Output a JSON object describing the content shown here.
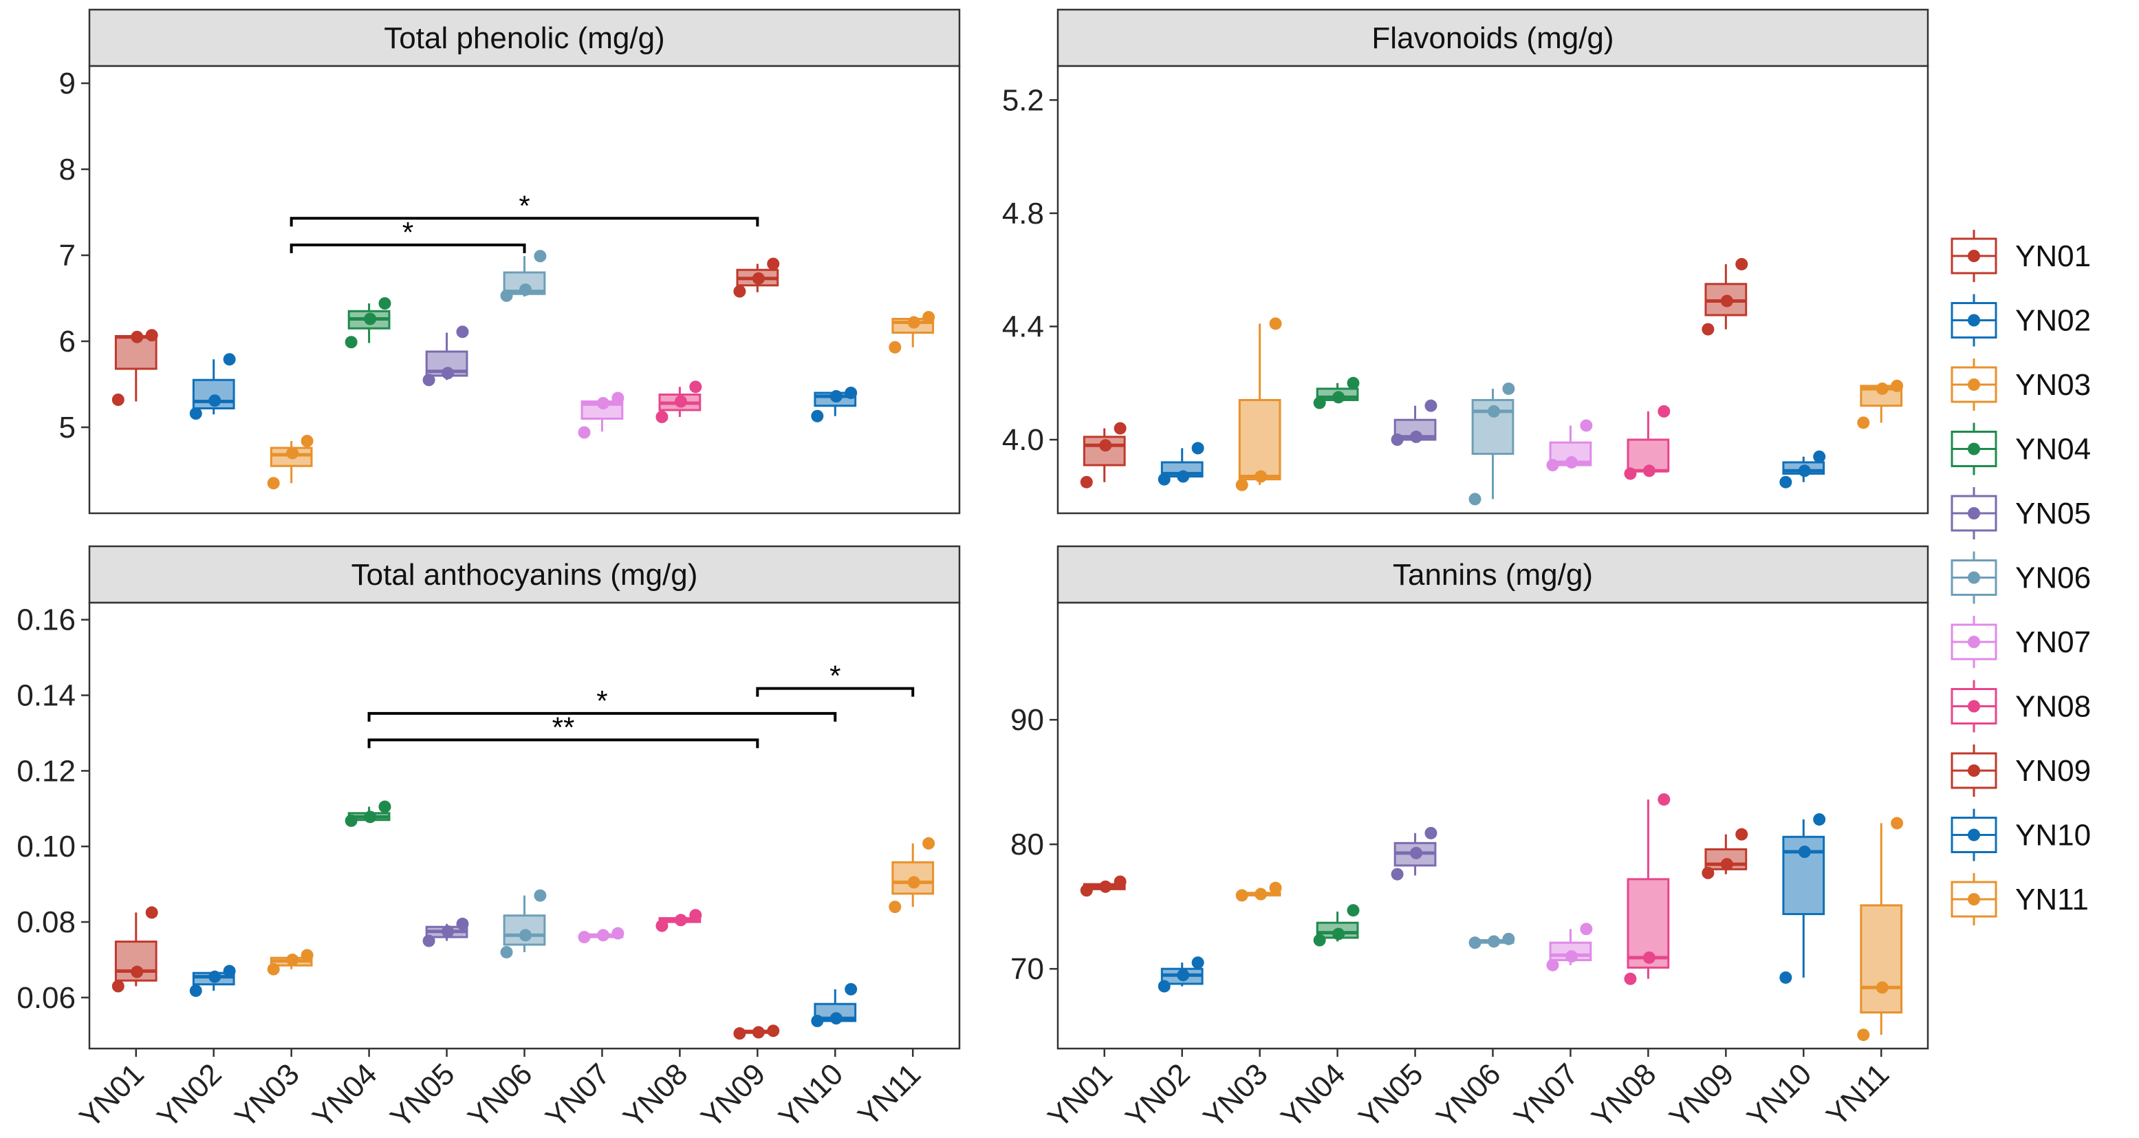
{
  "legend": {
    "items": [
      "YN01",
      "YN02",
      "YN03",
      "YN04",
      "YN05",
      "YN06",
      "YN07",
      "YN08",
      "YN09",
      "YN10",
      "YN11"
    ]
  },
  "colors": {
    "YN01": "#C0392B",
    "YN02": "#0E6FB8",
    "YN03": "#E8912B",
    "YN04": "#1E8B4C",
    "YN05": "#7B6BB0",
    "YN06": "#6D9EB8",
    "YN07": "#E08AE8",
    "YN08": "#E8458C",
    "YN09": "#C0392B",
    "YN10": "#0E6FB8",
    "YN11": "#E8912B",
    "strip_fill": "#E0E0E0",
    "panel_border": "#333333"
  },
  "chart_data": [
    {
      "type": "box",
      "title": "Total phenolic (mg/g)",
      "categories": [
        "YN01",
        "YN02",
        "YN03",
        "YN04",
        "YN05",
        "YN06",
        "YN07",
        "YN08",
        "YN09",
        "YN10",
        "YN11"
      ],
      "ylim": [
        4.0,
        9.2
      ],
      "yticks": [
        5,
        6,
        7,
        8,
        9
      ],
      "ytick_labels": [
        "5",
        "6",
        "7",
        "8",
        "9"
      ],
      "show_xticks": false,
      "boxes": [
        {
          "min": 5.3,
          "q1": 5.68,
          "median": 6.05,
          "q3": 6.06,
          "max": 6.08
        },
        {
          "min": 5.15,
          "q1": 5.22,
          "median": 5.3,
          "q3": 5.55,
          "max": 5.79
        },
        {
          "min": 4.35,
          "q1": 4.55,
          "median": 4.68,
          "q3": 4.76,
          "max": 4.84
        },
        {
          "min": 5.98,
          "q1": 6.15,
          "median": 6.26,
          "q3": 6.35,
          "max": 6.44
        },
        {
          "min": 5.55,
          "q1": 5.6,
          "median": 5.65,
          "q3": 5.88,
          "max": 6.1
        },
        {
          "min": 6.52,
          "q1": 6.55,
          "median": 6.58,
          "q3": 6.8,
          "max": 6.99
        },
        {
          "min": 4.95,
          "q1": 5.1,
          "median": 5.27,
          "q3": 5.3,
          "max": 5.33
        },
        {
          "min": 5.12,
          "q1": 5.2,
          "median": 5.28,
          "q3": 5.38,
          "max": 5.47
        },
        {
          "min": 6.57,
          "q1": 6.65,
          "median": 6.73,
          "q3": 6.83,
          "max": 6.9
        },
        {
          "min": 5.13,
          "q1": 5.25,
          "median": 5.36,
          "q3": 5.4,
          "max": 5.42
        },
        {
          "min": 5.93,
          "q1": 6.1,
          "median": 6.22,
          "q3": 6.26,
          "max": 6.29
        }
      ],
      "points": [
        [
          5.32,
          6.05,
          6.07
        ],
        [
          5.16,
          5.31,
          5.79
        ],
        [
          4.35,
          4.7,
          4.84
        ],
        [
          5.99,
          6.26,
          6.44
        ],
        [
          5.55,
          5.63,
          6.11
        ],
        [
          6.53,
          6.6,
          6.99
        ],
        [
          4.94,
          5.28,
          5.34
        ],
        [
          5.12,
          5.3,
          5.47
        ],
        [
          6.58,
          6.73,
          6.9
        ],
        [
          5.13,
          5.36,
          5.4
        ],
        [
          5.93,
          6.22,
          6.28
        ]
      ],
      "significance": [
        {
          "from": 2,
          "to": 8,
          "y": 7.43,
          "label": "*"
        },
        {
          "from": 2,
          "to": 5,
          "y": 7.12,
          "label": "*"
        }
      ]
    },
    {
      "type": "box",
      "title": "Flavonoids (mg/g)",
      "categories": [
        "YN01",
        "YN02",
        "YN03",
        "YN04",
        "YN05",
        "YN06",
        "YN07",
        "YN08",
        "YN09",
        "YN10",
        "YN11"
      ],
      "ylim": [
        3.74,
        5.32
      ],
      "yticks": [
        4.0,
        4.4,
        4.8,
        5.2
      ],
      "ytick_labels": [
        "4.0",
        "4.4",
        "4.8",
        "5.2"
      ],
      "show_xticks": false,
      "boxes": [
        {
          "min": 3.85,
          "q1": 3.91,
          "median": 3.98,
          "q3": 4.01,
          "max": 4.04
        },
        {
          "min": 3.86,
          "q1": 3.87,
          "median": 3.88,
          "q3": 3.92,
          "max": 3.97
        },
        {
          "min": 3.84,
          "q1": 3.86,
          "median": 3.87,
          "q3": 4.14,
          "max": 4.41
        },
        {
          "min": 4.13,
          "q1": 4.14,
          "median": 4.15,
          "q3": 4.18,
          "max": 4.2
        },
        {
          "min": 4.0,
          "q1": 4.0,
          "median": 4.01,
          "q3": 4.07,
          "max": 4.12
        },
        {
          "min": 3.79,
          "q1": 3.95,
          "median": 4.1,
          "q3": 4.14,
          "max": 4.18
        },
        {
          "min": 3.91,
          "q1": 3.91,
          "median": 3.92,
          "q3": 3.99,
          "max": 4.05
        },
        {
          "min": 3.88,
          "q1": 3.89,
          "median": 3.89,
          "q3": 4.0,
          "max": 4.1
        },
        {
          "min": 4.39,
          "q1": 4.44,
          "median": 4.49,
          "q3": 4.55,
          "max": 4.62
        },
        {
          "min": 3.85,
          "q1": 3.88,
          "median": 3.89,
          "q3": 3.92,
          "max": 3.94
        },
        {
          "min": 4.06,
          "q1": 4.12,
          "median": 4.18,
          "q3": 4.19,
          "max": 4.19
        }
      ],
      "points": [
        [
          3.85,
          3.98,
          4.04
        ],
        [
          3.86,
          3.87,
          3.97
        ],
        [
          3.84,
          3.87,
          4.41
        ],
        [
          4.13,
          4.15,
          4.2
        ],
        [
          4.0,
          4.01,
          4.12
        ],
        [
          3.79,
          4.1,
          4.18
        ],
        [
          3.91,
          3.92,
          4.05
        ],
        [
          3.88,
          3.89,
          4.1
        ],
        [
          4.39,
          4.49,
          4.62
        ],
        [
          3.85,
          3.89,
          3.94
        ],
        [
          4.06,
          4.18,
          4.19
        ]
      ],
      "significance": []
    },
    {
      "type": "box",
      "title": "Total anthocyanins (mg/g)",
      "categories": [
        "YN01",
        "YN02",
        "YN03",
        "YN04",
        "YN05",
        "YN06",
        "YN07",
        "YN08",
        "YN09",
        "YN10",
        "YN11"
      ],
      "ylim": [
        0.0465,
        0.1645
      ],
      "yticks": [
        0.06,
        0.08,
        0.1,
        0.12,
        0.14,
        0.16
      ],
      "ytick_labels": [
        "0.06",
        "0.08",
        "0.10",
        "0.12",
        "0.14",
        "0.16"
      ],
      "show_xticks": true,
      "boxes": [
        {
          "min": 0.063,
          "q1": 0.0645,
          "median": 0.067,
          "q3": 0.0748,
          "max": 0.0825
        },
        {
          "min": 0.0618,
          "q1": 0.0635,
          "median": 0.0655,
          "q3": 0.0665,
          "max": 0.067
        },
        {
          "min": 0.0675,
          "q1": 0.0685,
          "median": 0.0697,
          "q3": 0.0705,
          "max": 0.0712
        },
        {
          "min": 0.1065,
          "q1": 0.107,
          "median": 0.1078,
          "q3": 0.1088,
          "max": 0.1105
        },
        {
          "min": 0.075,
          "q1": 0.076,
          "median": 0.0775,
          "q3": 0.0787,
          "max": 0.0795
        },
        {
          "min": 0.072,
          "q1": 0.074,
          "median": 0.0765,
          "q3": 0.0817,
          "max": 0.087
        },
        {
          "min": 0.076,
          "q1": 0.076,
          "median": 0.0765,
          "q3": 0.0767,
          "max": 0.077
        },
        {
          "min": 0.079,
          "q1": 0.08,
          "median": 0.0805,
          "q3": 0.081,
          "max": 0.0818
        },
        {
          "min": 0.0505,
          "q1": 0.0507,
          "median": 0.051,
          "q3": 0.0512,
          "max": 0.0515
        },
        {
          "min": 0.0535,
          "q1": 0.0538,
          "median": 0.0545,
          "q3": 0.0583,
          "max": 0.0622
        },
        {
          "min": 0.084,
          "q1": 0.0875,
          "median": 0.0905,
          "q3": 0.0958,
          "max": 0.1008
        }
      ],
      "points": [
        [
          0.063,
          0.0668,
          0.0825
        ],
        [
          0.0618,
          0.0655,
          0.067
        ],
        [
          0.0675,
          0.07,
          0.0712
        ],
        [
          0.1068,
          0.1078,
          0.1105
        ],
        [
          0.075,
          0.0775,
          0.0795
        ],
        [
          0.072,
          0.0765,
          0.087
        ],
        [
          0.076,
          0.0765,
          0.077
        ],
        [
          0.079,
          0.0805,
          0.0818
        ],
        [
          0.0505,
          0.0508,
          0.0512
        ],
        [
          0.0538,
          0.0545,
          0.0622
        ],
        [
          0.084,
          0.0905,
          0.1008
        ]
      ],
      "significance": [
        {
          "from": 3,
          "to": 9,
          "y": 0.1352,
          "label": "*"
        },
        {
          "from": 3,
          "to": 8,
          "y": 0.1282,
          "label": "**"
        },
        {
          "from": 8,
          "to": 10,
          "y": 0.1418,
          "label": "*"
        }
      ]
    },
    {
      "type": "box",
      "title": "Tannins (mg/g)",
      "categories": [
        "YN01",
        "YN02",
        "YN03",
        "YN04",
        "YN05",
        "YN06",
        "YN07",
        "YN08",
        "YN09",
        "YN10",
        "YN11"
      ],
      "ylim": [
        63.6,
        99.4
      ],
      "yticks": [
        70,
        80,
        90
      ],
      "ytick_labels": [
        "70",
        "80",
        "90"
      ],
      "show_xticks": true,
      "boxes": [
        {
          "min": 76.2,
          "q1": 76.4,
          "median": 76.6,
          "q3": 76.8,
          "max": 77.0
        },
        {
          "min": 68.6,
          "q1": 68.8,
          "median": 69.5,
          "q3": 70.0,
          "max": 70.5
        },
        {
          "min": 75.8,
          "q1": 75.9,
          "median": 76.0,
          "q3": 76.1,
          "max": 76.5
        },
        {
          "min": 72.2,
          "q1": 72.5,
          "median": 72.9,
          "q3": 73.7,
          "max": 74.6
        },
        {
          "min": 77.5,
          "q1": 78.3,
          "median": 79.3,
          "q3": 80.1,
          "max": 80.9
        },
        {
          "min": 72.0,
          "q1": 72.1,
          "median": 72.2,
          "q3": 72.3,
          "max": 72.4
        },
        {
          "min": 70.3,
          "q1": 70.7,
          "median": 71.1,
          "q3": 72.1,
          "max": 73.2
        },
        {
          "min": 69.2,
          "q1": 70.1,
          "median": 70.9,
          "q3": 77.2,
          "max": 83.6
        },
        {
          "min": 77.6,
          "q1": 78.0,
          "median": 78.4,
          "q3": 79.6,
          "max": 80.8
        },
        {
          "min": 69.3,
          "q1": 74.4,
          "median": 79.4,
          "q3": 80.6,
          "max": 82.0
        },
        {
          "min": 64.7,
          "q1": 66.5,
          "median": 68.5,
          "q3": 75.1,
          "max": 81.7
        }
      ],
      "points": [
        [
          76.3,
          76.6,
          77.0
        ],
        [
          68.6,
          69.5,
          70.5
        ],
        [
          75.9,
          76.0,
          76.5
        ],
        [
          72.3,
          72.8,
          74.7
        ],
        [
          77.6,
          79.3,
          80.9
        ],
        [
          72.1,
          72.2,
          72.4
        ],
        [
          70.3,
          71.0,
          73.2
        ],
        [
          69.2,
          70.9,
          83.6
        ],
        [
          77.7,
          78.4,
          80.8
        ],
        [
          69.3,
          79.4,
          82.0
        ],
        [
          64.7,
          68.5,
          81.7
        ]
      ],
      "significance": []
    }
  ]
}
